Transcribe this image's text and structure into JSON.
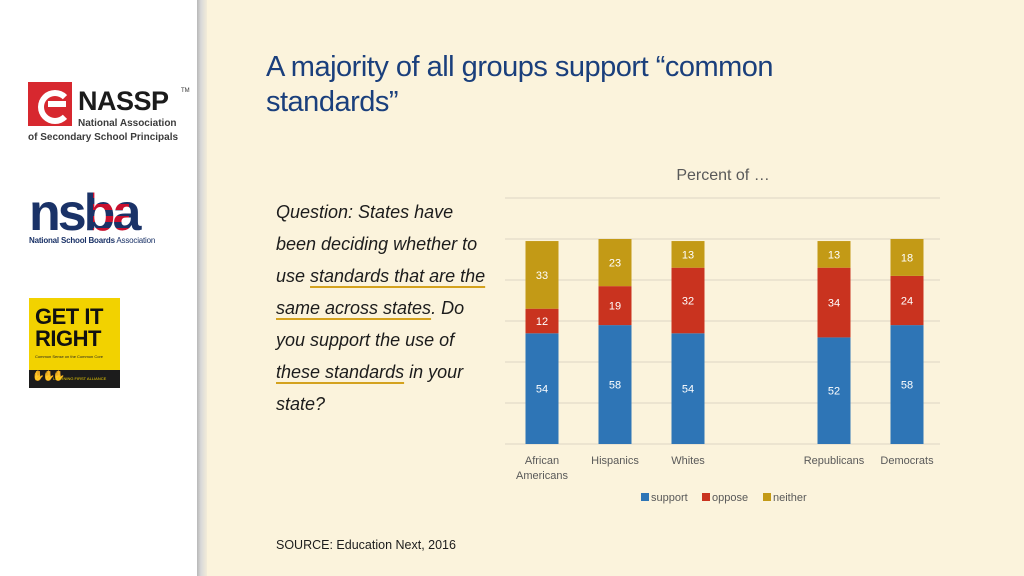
{
  "slide": {
    "title": "A majority of all groups support “common standards”",
    "question_parts": [
      {
        "text": "Question: States have been deciding whether to use ",
        "u": false
      },
      {
        "text": "standards that are the same across states",
        "u": true
      },
      {
        "text": ". Do you support the use of ",
        "u": false
      },
      {
        "text": "these standards",
        "u": true
      },
      {
        "text": " in your state?",
        "u": false
      }
    ],
    "source": "SOURCE: Education Next, 2016"
  },
  "logos": {
    "nassp": {
      "name": "NASSP",
      "tm": "TM",
      "line1": "National Association",
      "line2": "of Secondary School Principals",
      "color": "#d7282f"
    },
    "nsba": {
      "letters": "nsba",
      "tagline_bold": "National School Boards",
      "tagline_rest": " Association",
      "color": "#1a3267"
    },
    "get_it_right": {
      "line1": "GET IT",
      "line2": "RIGHT",
      "tagline": "Common Sense on the Common Core",
      "footer": "LEARNING FIRST ALLIANCE",
      "color": "#f2d200"
    }
  },
  "chart_data": {
    "type": "bar",
    "stacked": true,
    "title": "Percent of …",
    "categories": [
      "African Americans",
      "Hispanics",
      "Whites",
      "Republicans",
      "Democrats"
    ],
    "category_lines": [
      [
        "African",
        "Americans"
      ],
      [
        "Hispanics"
      ],
      [
        "Whites"
      ],
      [
        "Republicans"
      ],
      [
        "Democrats"
      ]
    ],
    "category_slots": [
      0,
      1,
      2,
      4,
      5
    ],
    "series": [
      {
        "name": "support",
        "color": "#2e75b6",
        "values": [
          54,
          58,
          54,
          52,
          58
        ]
      },
      {
        "name": "oppose",
        "color": "#c9331f",
        "values": [
          12,
          19,
          32,
          34,
          24
        ]
      },
      {
        "name": "neither",
        "color": "#c39a16",
        "values": [
          33,
          23,
          13,
          13,
          18
        ]
      }
    ],
    "ylim": [
      0,
      120
    ],
    "grid": true,
    "legend": "bottom"
  }
}
